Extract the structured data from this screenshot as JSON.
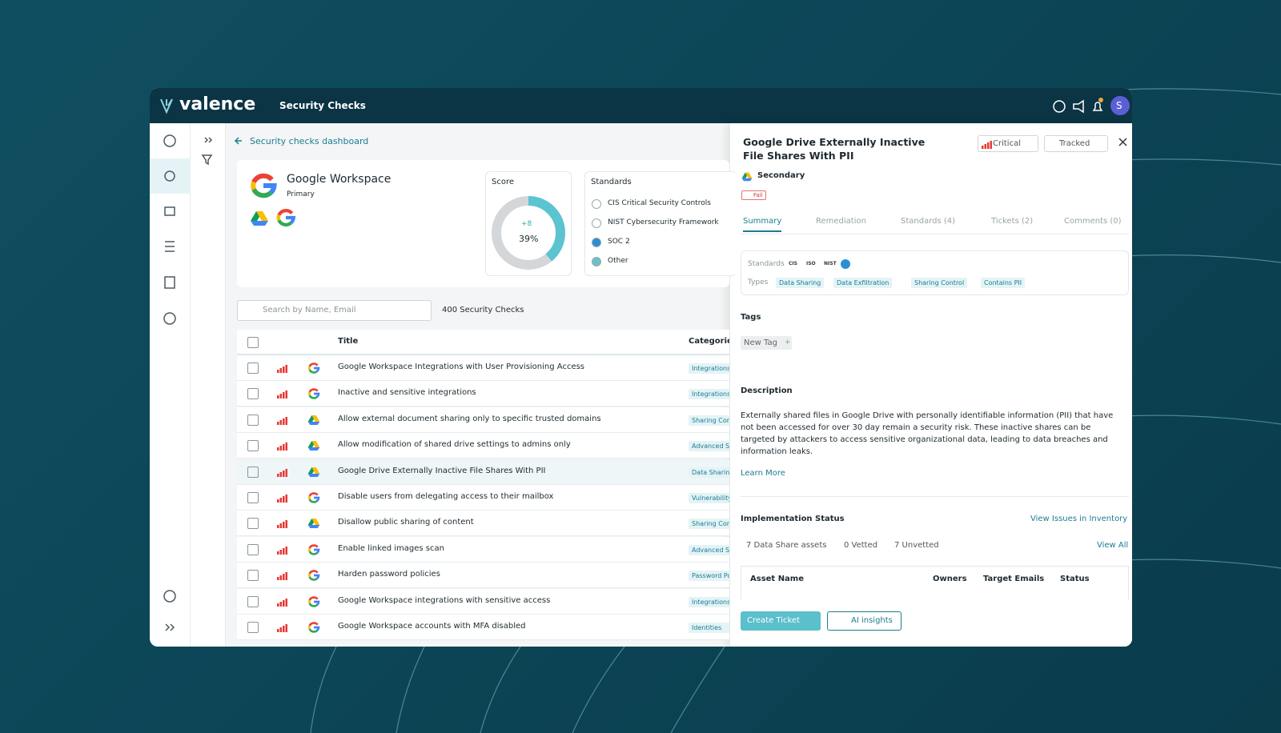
{
  "header": {
    "logo": "valence",
    "page_title": "Security Checks",
    "avatar": "S"
  },
  "breadcrumb": "Security checks dashboard",
  "app": {
    "name": "Google Workspace",
    "role": "Primary"
  },
  "score": {
    "label": "Score",
    "delta": "+8",
    "value": 39,
    "value_label": "39%"
  },
  "standards": {
    "title": "Standards",
    "items": [
      "CIS Critical Security Controls",
      "NIST Cybersecurity Framework",
      "SOC 2",
      "Other"
    ]
  },
  "search": {
    "placeholder": "Search by Name, Email",
    "count": "400 Security Checks"
  },
  "table": {
    "columns": [
      "Title",
      "Categories"
    ],
    "rows": [
      {
        "icon": "google",
        "title": "Google Workspace Integrations with User Provisioning Access",
        "category": "Integrations"
      },
      {
        "icon": "google",
        "title": "Inactive and sensitive integrations",
        "category": "Integrations"
      },
      {
        "icon": "drive",
        "title": "Allow external document sharing only to specific trusted domains",
        "category": "Sharing Control"
      },
      {
        "icon": "drive",
        "title": "Allow modification of shared drive settings to admins only",
        "category": "Advanced Settings"
      },
      {
        "icon": "drive",
        "title": "Google Drive Externally Inactive File Shares With PII",
        "category": "Data Sharing",
        "selected": true
      },
      {
        "icon": "google",
        "title": "Disable users from delegating access to their mailbox",
        "category": "Vulnerability"
      },
      {
        "icon": "drive",
        "title": "Disallow public sharing of content",
        "category": "Sharing Control"
      },
      {
        "icon": "google",
        "title": "Enable linked images scan",
        "category": "Advanced Settings"
      },
      {
        "icon": "google",
        "title": "Harden password policies",
        "category": "Password Policy"
      },
      {
        "icon": "google",
        "title": "Google Workspace integrations with sensitive access",
        "category": "Integrations"
      },
      {
        "icon": "google",
        "title": "Google Workspace accounts with MFA disabled",
        "category": "Identities"
      }
    ]
  },
  "panel": {
    "title": "Google Drive Externally Inactive File Shares With PII",
    "severity": "Critical",
    "status": "Tracked",
    "app": "Secondary",
    "result": "Fail",
    "tabs": [
      "Summary",
      "Remediation",
      "Standards (4)",
      "Tickets (2)",
      "Comments (0)"
    ],
    "standards_label": "Standards",
    "standard_badges": [
      "CIS",
      "ISO",
      "NIST"
    ],
    "types_label": "Types",
    "types": [
      "Data Sharing",
      "Data Exfiltration",
      "Sharing Control",
      "Contains PII"
    ],
    "tags_heading": "Tags",
    "new_tag": "New Tag",
    "add": "+",
    "description_heading": "Description",
    "description": "Externally shared files in Google Drive with personally identifiable information (PII) that have not been accessed for over 30 day remain a security risk. These inactive shares can be targeted by attackers to access sensitive organizational data, leading to data breaches and information leaks.",
    "learn_more": "Learn More",
    "impl_heading": "Implementation Status",
    "impl_link": "View Issues in Inventory",
    "stats": [
      "7 Data Share assets",
      "0 Vetted",
      "7 Unvetted"
    ],
    "view_all": "View All",
    "asset_columns": [
      "Asset Name",
      "Owners",
      "Target Emails",
      "Status"
    ],
    "create_ticket": "Create Ticket",
    "ai_insights": "AI insights"
  }
}
